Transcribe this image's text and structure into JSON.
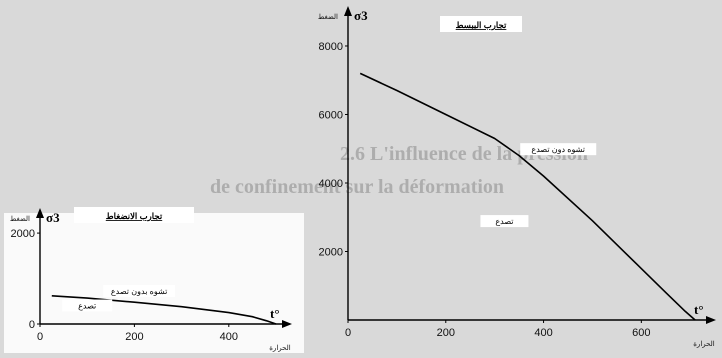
{
  "chart_data": [
    {
      "type": "line",
      "title": "تجارب الانضغاط",
      "ylabel": "σ3",
      "ylabel_word": "الضغط",
      "xlabel": "t°",
      "xlabel_word": "الحرارة",
      "xlim": [
        0,
        500
      ],
      "ylim": [
        0,
        2200
      ],
      "xticks": [
        "0",
        "200",
        "400"
      ],
      "yticks": [
        "0",
        "2000"
      ],
      "series": [
        {
          "name": "",
          "x": [
            25,
            100,
            200,
            300,
            400,
            450,
            480,
            500
          ],
          "y": [
            620,
            570,
            480,
            380,
            250,
            160,
            70,
            0
          ]
        }
      ],
      "annotations": [
        {
          "text": "تشوه بدون تصدع",
          "x": 210,
          "y": 660
        },
        {
          "text": "تصدع",
          "x": 100,
          "y": 340
        }
      ]
    },
    {
      "type": "line",
      "title": "تجارب الببسط",
      "ylabel": "σ3",
      "ylabel_word": "الضغط",
      "xlabel": "t°",
      "xlabel_word": "الحرارة",
      "xlim": [
        0,
        720
      ],
      "ylim": [
        0,
        8700
      ],
      "xticks": [
        "0",
        "200",
        "400",
        "600"
      ],
      "yticks": [
        "2000",
        "4000",
        "6000",
        "8000"
      ],
      "series": [
        {
          "name": "",
          "x": [
            25,
            100,
            200,
            300,
            350,
            400,
            500,
            600,
            650,
            690,
            710
          ],
          "y": [
            7200,
            6700,
            6000,
            5300,
            4800,
            4200,
            2900,
            1500,
            800,
            250,
            0
          ]
        }
      ],
      "annotations": [
        {
          "text": "تشوه دون تصدع",
          "x": 430,
          "y": 4900
        },
        {
          "text": "تصدع",
          "x": 320,
          "y": 2800
        }
      ]
    }
  ],
  "background_text": [
    "2.6 L'influence de la pression",
    "de confinement sur la déformation"
  ]
}
